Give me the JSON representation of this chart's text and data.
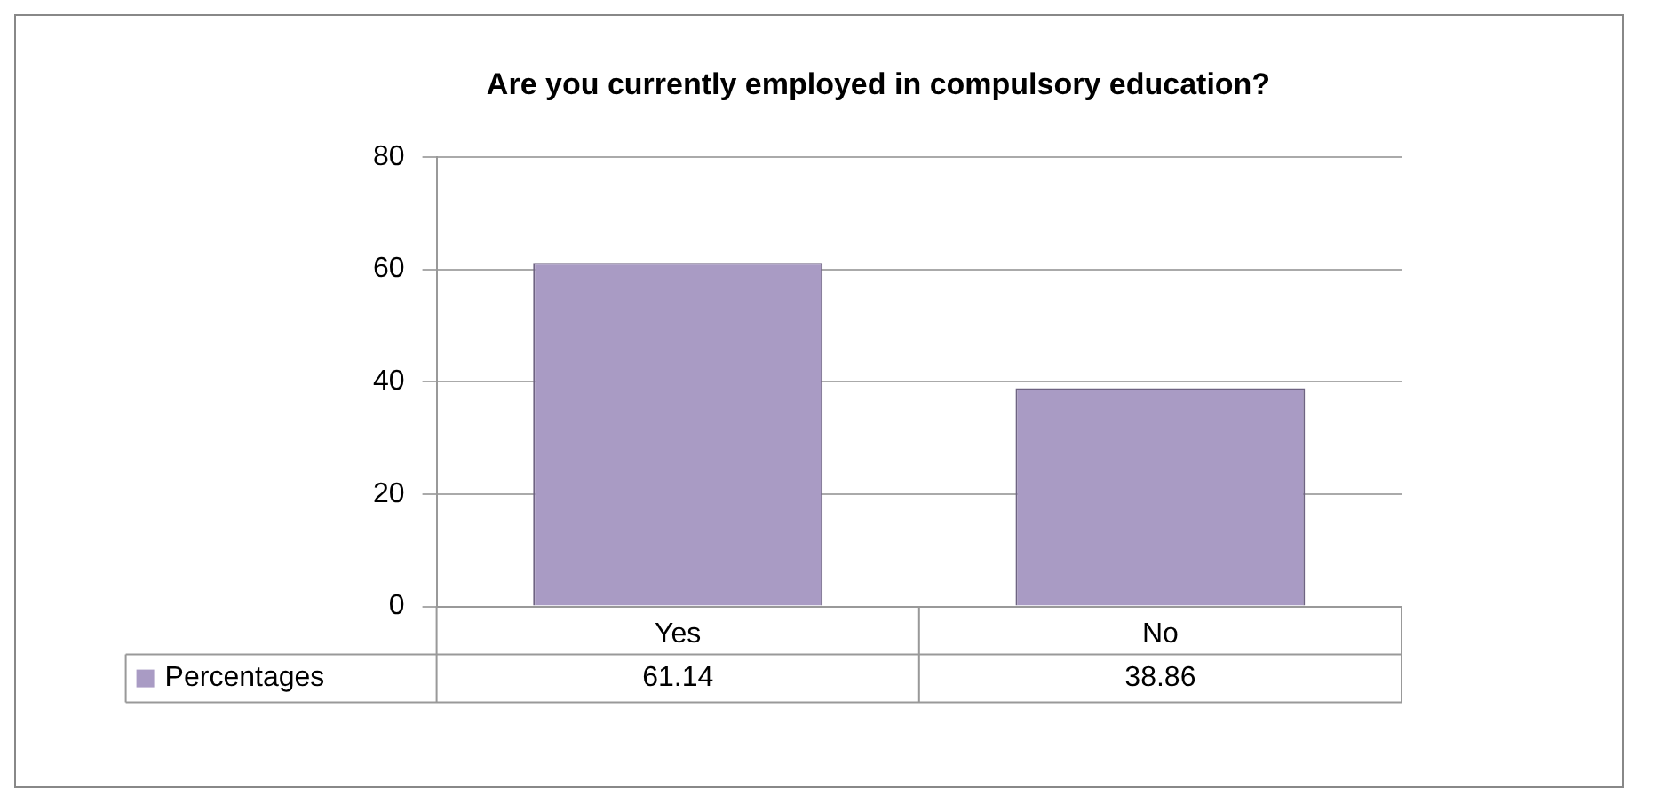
{
  "chart_data": {
    "type": "bar",
    "title": "Are you currently employed in compulsory education?",
    "categories": [
      "Yes",
      "No"
    ],
    "series": [
      {
        "name": "Percentages",
        "color": "#a99bc4",
        "values": [
          61.14,
          38.86
        ]
      }
    ],
    "ylim": [
      0,
      80
    ],
    "yticks": [
      0,
      20,
      40,
      60,
      80
    ],
    "grid": "y",
    "data_labels": true,
    "legend": "bottom left"
  }
}
